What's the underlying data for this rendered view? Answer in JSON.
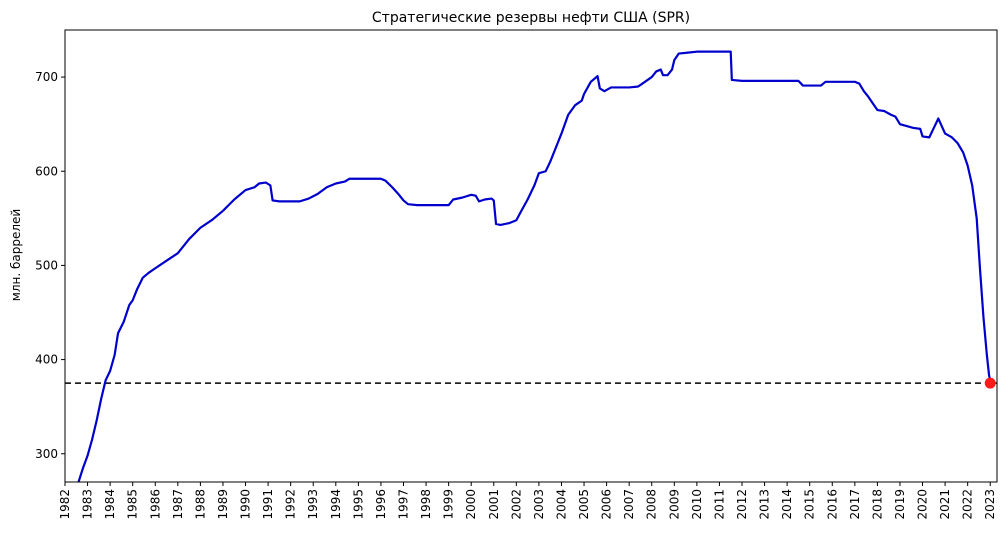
{
  "chart_data": {
    "type": "line",
    "title": "Стратегические резервы нефти США (SPR)",
    "xlabel": "",
    "ylabel": "млн. баррелей",
    "xlim": [
      1982.0,
      2023.3
    ],
    "ylim": [
      270,
      750
    ],
    "x_ticks": [
      "1982",
      "1983",
      "1984",
      "1985",
      "1986",
      "1987",
      "1988",
      "1989",
      "1990",
      "1991",
      "1992",
      "1993",
      "1994",
      "1995",
      "1996",
      "1997",
      "1998",
      "1999",
      "2000",
      "2001",
      "2002",
      "2003",
      "2004",
      "2005",
      "2006",
      "2007",
      "2008",
      "2009",
      "2010",
      "2011",
      "2012",
      "2013",
      "2014",
      "2015",
      "2016",
      "2017",
      "2018",
      "2019",
      "2020",
      "2021",
      "2022",
      "2023"
    ],
    "y_ticks": [
      300,
      400,
      500,
      600,
      700
    ],
    "grid": false,
    "colors": {
      "line": "#0000cd",
      "reference": "#000000",
      "marker": "#ff1a1a"
    },
    "series": [
      {
        "line_color": "#0000cd",
        "points": [
          [
            1982.6,
            270
          ],
          [
            1982.8,
            285
          ],
          [
            1983.0,
            298
          ],
          [
            1983.2,
            315
          ],
          [
            1983.4,
            335
          ],
          [
            1983.6,
            358
          ],
          [
            1983.8,
            378
          ],
          [
            1984.0,
            388
          ],
          [
            1984.2,
            405
          ],
          [
            1984.35,
            428
          ],
          [
            1984.6,
            440
          ],
          [
            1984.85,
            458
          ],
          [
            1985.0,
            463
          ],
          [
            1985.2,
            475
          ],
          [
            1985.45,
            487
          ],
          [
            1985.7,
            492
          ],
          [
            1986.0,
            497
          ],
          [
            1986.5,
            505
          ],
          [
            1987.0,
            513
          ],
          [
            1987.5,
            528
          ],
          [
            1988.0,
            540
          ],
          [
            1988.5,
            548
          ],
          [
            1989.0,
            558
          ],
          [
            1989.5,
            570
          ],
          [
            1990.0,
            580
          ],
          [
            1990.4,
            583
          ],
          [
            1990.6,
            587
          ],
          [
            1990.9,
            588
          ],
          [
            1991.1,
            585
          ],
          [
            1991.2,
            569
          ],
          [
            1991.5,
            568
          ],
          [
            1992.0,
            568
          ],
          [
            1992.4,
            568
          ],
          [
            1992.8,
            571
          ],
          [
            1993.2,
            576
          ],
          [
            1993.6,
            583
          ],
          [
            1994.0,
            587
          ],
          [
            1994.4,
            589
          ],
          [
            1994.6,
            592
          ],
          [
            1995.0,
            592
          ],
          [
            1995.5,
            592
          ],
          [
            1996.0,
            592
          ],
          [
            1996.2,
            590
          ],
          [
            1996.5,
            583
          ],
          [
            1996.8,
            575
          ],
          [
            1997.0,
            569
          ],
          [
            1997.2,
            565
          ],
          [
            1997.6,
            564
          ],
          [
            1998.0,
            564
          ],
          [
            1998.5,
            564
          ],
          [
            1999.0,
            564
          ],
          [
            1999.2,
            570
          ],
          [
            1999.6,
            572
          ],
          [
            2000.0,
            575
          ],
          [
            2000.2,
            574
          ],
          [
            2000.35,
            568
          ],
          [
            2000.6,
            570
          ],
          [
            2000.9,
            571
          ],
          [
            2001.0,
            569
          ],
          [
            2001.1,
            544
          ],
          [
            2001.3,
            543
          ],
          [
            2001.7,
            545
          ],
          [
            2002.0,
            548
          ],
          [
            2002.2,
            557
          ],
          [
            2002.5,
            570
          ],
          [
            2002.8,
            585
          ],
          [
            2003.0,
            598
          ],
          [
            2003.3,
            600
          ],
          [
            2003.5,
            610
          ],
          [
            2003.8,
            628
          ],
          [
            2004.0,
            640
          ],
          [
            2004.3,
            660
          ],
          [
            2004.6,
            670
          ],
          [
            2004.9,
            675
          ],
          [
            2005.0,
            682
          ],
          [
            2005.3,
            695
          ],
          [
            2005.6,
            701
          ],
          [
            2005.7,
            688
          ],
          [
            2005.9,
            685
          ],
          [
            2006.2,
            689
          ],
          [
            2006.5,
            689
          ],
          [
            2007.0,
            689
          ],
          [
            2007.4,
            690
          ],
          [
            2007.7,
            695
          ],
          [
            2008.0,
            700
          ],
          [
            2008.2,
            706
          ],
          [
            2008.4,
            708
          ],
          [
            2008.5,
            702
          ],
          [
            2008.7,
            702
          ],
          [
            2008.9,
            708
          ],
          [
            2009.0,
            718
          ],
          [
            2009.2,
            725
          ],
          [
            2009.6,
            726
          ],
          [
            2010.0,
            727
          ],
          [
            2010.5,
            727
          ],
          [
            2011.0,
            727
          ],
          [
            2011.5,
            727
          ],
          [
            2011.55,
            697
          ],
          [
            2012.0,
            696
          ],
          [
            2012.5,
            696
          ],
          [
            2013.0,
            696
          ],
          [
            2013.5,
            696
          ],
          [
            2014.0,
            696
          ],
          [
            2014.5,
            696
          ],
          [
            2014.7,
            691
          ],
          [
            2015.0,
            691
          ],
          [
            2015.5,
            691
          ],
          [
            2015.7,
            695
          ],
          [
            2016.0,
            695
          ],
          [
            2016.5,
            695
          ],
          [
            2017.0,
            695
          ],
          [
            2017.2,
            693
          ],
          [
            2017.4,
            685
          ],
          [
            2017.6,
            679
          ],
          [
            2017.8,
            672
          ],
          [
            2018.0,
            665
          ],
          [
            2018.3,
            664
          ],
          [
            2018.6,
            660
          ],
          [
            2018.8,
            658
          ],
          [
            2019.0,
            650
          ],
          [
            2019.3,
            648
          ],
          [
            2019.6,
            646
          ],
          [
            2019.9,
            645
          ],
          [
            2020.0,
            637
          ],
          [
            2020.3,
            636
          ],
          [
            2020.5,
            646
          ],
          [
            2020.7,
            656
          ],
          [
            2020.85,
            648
          ],
          [
            2021.0,
            640
          ],
          [
            2021.3,
            636
          ],
          [
            2021.55,
            630
          ],
          [
            2021.8,
            620
          ],
          [
            2022.0,
            606
          ],
          [
            2022.2,
            585
          ],
          [
            2022.4,
            550
          ],
          [
            2022.55,
            495
          ],
          [
            2022.7,
            445
          ],
          [
            2022.85,
            405
          ],
          [
            2022.95,
            383
          ],
          [
            2023.0,
            378
          ]
        ]
      }
    ],
    "reference_line": {
      "y": 375,
      "style": "dashed"
    },
    "end_marker": {
      "x": 2023.0,
      "y": 375
    }
  }
}
